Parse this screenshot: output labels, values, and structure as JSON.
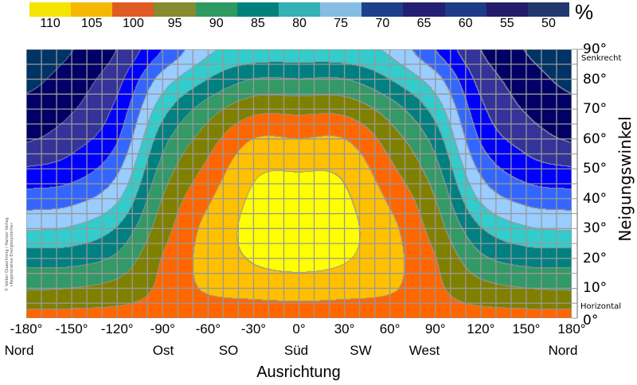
{
  "chart_data": {
    "type": "heatmap",
    "unit_label": "%",
    "xlabel": "Ausrichtung",
    "ylabel": "Neigungswinkel",
    "xlim": [
      -180,
      180
    ],
    "ylim": [
      0,
      90
    ],
    "grid": true,
    "x_ticks": [
      "-180°",
      "-150°",
      "-120°",
      "-90°",
      "-60°",
      "-30°",
      "0°",
      "30°",
      "60°",
      "90°",
      "120°",
      "150°",
      "180°"
    ],
    "x_direction_labels": [
      {
        "az": -180,
        "label": "Nord"
      },
      {
        "az": -90,
        "label": "Ost"
      },
      {
        "az": -45,
        "label": "SO"
      },
      {
        "az": 0,
        "label": "Süd"
      },
      {
        "az": 45,
        "label": "SW"
      },
      {
        "az": 90,
        "label": "West"
      },
      {
        "az": 180,
        "label": "Nord"
      }
    ],
    "y_ticks": [
      "0°",
      "10°",
      "20°",
      "30°",
      "40°",
      "50°",
      "60°",
      "70°",
      "80°",
      "90°"
    ],
    "y_annotations": {
      "top": "Senkrecht",
      "bottom": "Horizontal"
    },
    "legend": {
      "position": "top",
      "levels": [
        {
          "label": "110",
          "color": "#ffff00",
          "swatch": "#f4e400"
        },
        {
          "label": "105",
          "color": "#ffc000",
          "swatch": "#f5b800"
        },
        {
          "label": "100",
          "color": "#ff6600",
          "swatch": "#e05a23"
        },
        {
          "label": "95",
          "color": "#808000",
          "swatch": "#878a2e"
        },
        {
          "label": "90",
          "color": "#339966",
          "swatch": "#2e9a62"
        },
        {
          "label": "85",
          "color": "#008080",
          "swatch": "#00827c"
        },
        {
          "label": "80",
          "color": "#33cccc",
          "swatch": "#33b1b3"
        },
        {
          "label": "75",
          "color": "#99ccff",
          "swatch": "#85bde5"
        },
        {
          "label": "70",
          "color": "#3366ff",
          "swatch": "#1f3f8a"
        },
        {
          "label": "65",
          "color": "#0000ff",
          "swatch": "#241f74"
        },
        {
          "label": "60",
          "color": "#333399",
          "swatch": "#1f3a86"
        },
        {
          "label": "55",
          "color": "#000066",
          "swatch": "#231c6b"
        },
        {
          "label": "50",
          "color": "#003366",
          "swatch": "#21386e"
        }
      ]
    },
    "azimuths": [
      -180,
      -150,
      -120,
      -90,
      -60,
      -30,
      0,
      30,
      60,
      90,
      120,
      150,
      180
    ],
    "tilts": [
      0,
      10,
      20,
      30,
      40,
      50,
      60,
      70,
      80,
      90
    ],
    "values_by_azimuth": [
      [
        101.5,
        94.4,
        87.7,
        79.4,
        72.2,
        65.4,
        59.4,
        56.5,
        53.7,
        51.5
      ],
      [
        101.5,
        95.0,
        87.9,
        80.5,
        73.3,
        67.3,
        62.9,
        59.5,
        57.4,
        54.8
      ],
      [
        101.5,
        96.7,
        91.0,
        85.4,
        79.1,
        73.9,
        69.4,
        66.3,
        63.3,
        60.1
      ],
      [
        101.5,
        101.0,
        100.2,
        97.7,
        95.1,
        91.7,
        87.9,
        82.9,
        77.0,
        70.0
      ],
      [
        101.5,
        105.8,
        106.8,
        106.5,
        104.2,
        101.2,
        97.6,
        92.5,
        85.0,
        79.0
      ],
      [
        101.5,
        107.3,
        110.4,
        111.2,
        110.7,
        108.9,
        105.0,
        98.3,
        90.0,
        81.5
      ],
      [
        101.5,
        108.0,
        111.2,
        112.5,
        112.0,
        109.6,
        105.0,
        98.5,
        90.0,
        82.0
      ],
      [
        101.5,
        107.3,
        110.4,
        111.2,
        110.7,
        108.9,
        105.0,
        98.3,
        90.0,
        81.5
      ],
      [
        101.5,
        105.8,
        106.8,
        106.5,
        104.2,
        101.2,
        97.6,
        92.5,
        85.0,
        79.0
      ],
      [
        101.5,
        101.0,
        100.2,
        97.7,
        95.1,
        91.7,
        87.9,
        82.9,
        77.0,
        70.0
      ],
      [
        101.5,
        96.7,
        91.0,
        85.4,
        79.1,
        73.9,
        69.4,
        66.3,
        63.3,
        60.1
      ],
      [
        101.5,
        95.0,
        87.9,
        80.5,
        73.3,
        67.3,
        62.9,
        59.5,
        57.4,
        54.8
      ],
      [
        101.5,
        94.4,
        87.7,
        79.4,
        72.2,
        65.4,
        59.4,
        56.5,
        53.7,
        51.5
      ]
    ]
  },
  "copyright": [
    "© Volker Quaschning / Hanser Verlag",
    "»Regenerative Energiesysteme«"
  ]
}
